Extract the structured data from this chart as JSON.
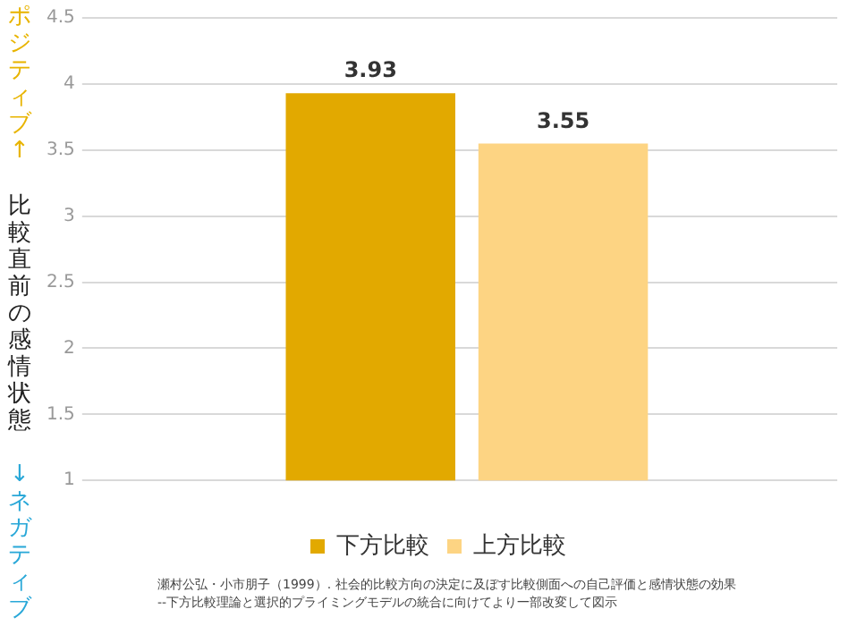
{
  "chart_data": {
    "type": "bar",
    "ylabel": "比較直前の感情状態",
    "categories": [
      null
    ],
    "series": [
      {
        "name": "下方比較",
        "color": "#e2a900",
        "values": [
          3.93
        ]
      },
      {
        "name": "上方比較",
        "color": "#fdd483",
        "values": [
          3.55
        ]
      }
    ],
    "ylim": [
      1,
      4.5
    ],
    "yticks": [
      1,
      1.5,
      2,
      2.5,
      3,
      3.5,
      4,
      4.5
    ],
    "grid": "y",
    "legend": "bottom",
    "data_labels": true,
    "annotations": [
      "ポジティブ↑",
      "↓ネガティブ",
      "瀬村公弘・小市朋子（1999）. 社会的比較方向の決定に及ぼす比較側面への自己評価と感情状態の効果",
      "--下方比較理論と選択的プライミングモデルの統合に向けてより一部改変して図示"
    ]
  }
}
